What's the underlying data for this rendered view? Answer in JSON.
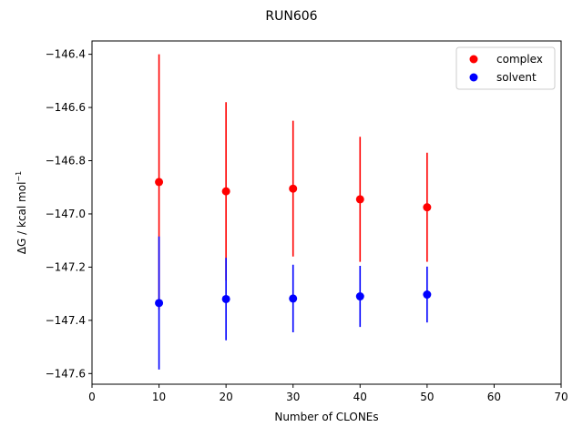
{
  "chart_data": {
    "type": "scatter",
    "title": "RUN606",
    "xlabel": "Number of CLONEs",
    "ylabel_prefix": "ΔG / kcal mol",
    "ylabel_sup": "−1",
    "xlim": [
      0,
      70
    ],
    "ylim": [
      -147.64,
      -146.35
    ],
    "xticks": [
      0,
      10,
      20,
      30,
      40,
      50,
      60,
      70
    ],
    "xtick_labels": [
      "0",
      "10",
      "20",
      "30",
      "40",
      "50",
      "60",
      "70"
    ],
    "yticks": [
      -146.4,
      -146.6,
      -146.8,
      -147.0,
      -147.2,
      -147.4,
      -147.6
    ],
    "ytick_labels": [
      "−146.4",
      "−146.6",
      "−146.8",
      "−147.0",
      "−147.2",
      "−147.4",
      "−147.6"
    ],
    "grid": false,
    "legend_position": "top-right",
    "series": [
      {
        "name": "complex",
        "color": "#ff0000",
        "x": [
          10,
          20,
          30,
          40,
          50
        ],
        "y": [
          -146.88,
          -146.915,
          -146.905,
          -146.945,
          -146.975
        ],
        "yerr": [
          0.48,
          0.335,
          0.255,
          0.235,
          0.205
        ]
      },
      {
        "name": "solvent",
        "color": "#0000ff",
        "x": [
          10,
          20,
          30,
          40,
          50
        ],
        "y": [
          -147.335,
          -147.32,
          -147.318,
          -147.31,
          -147.303
        ],
        "yerr": [
          0.25,
          0.155,
          0.127,
          0.115,
          0.105
        ]
      }
    ]
  }
}
